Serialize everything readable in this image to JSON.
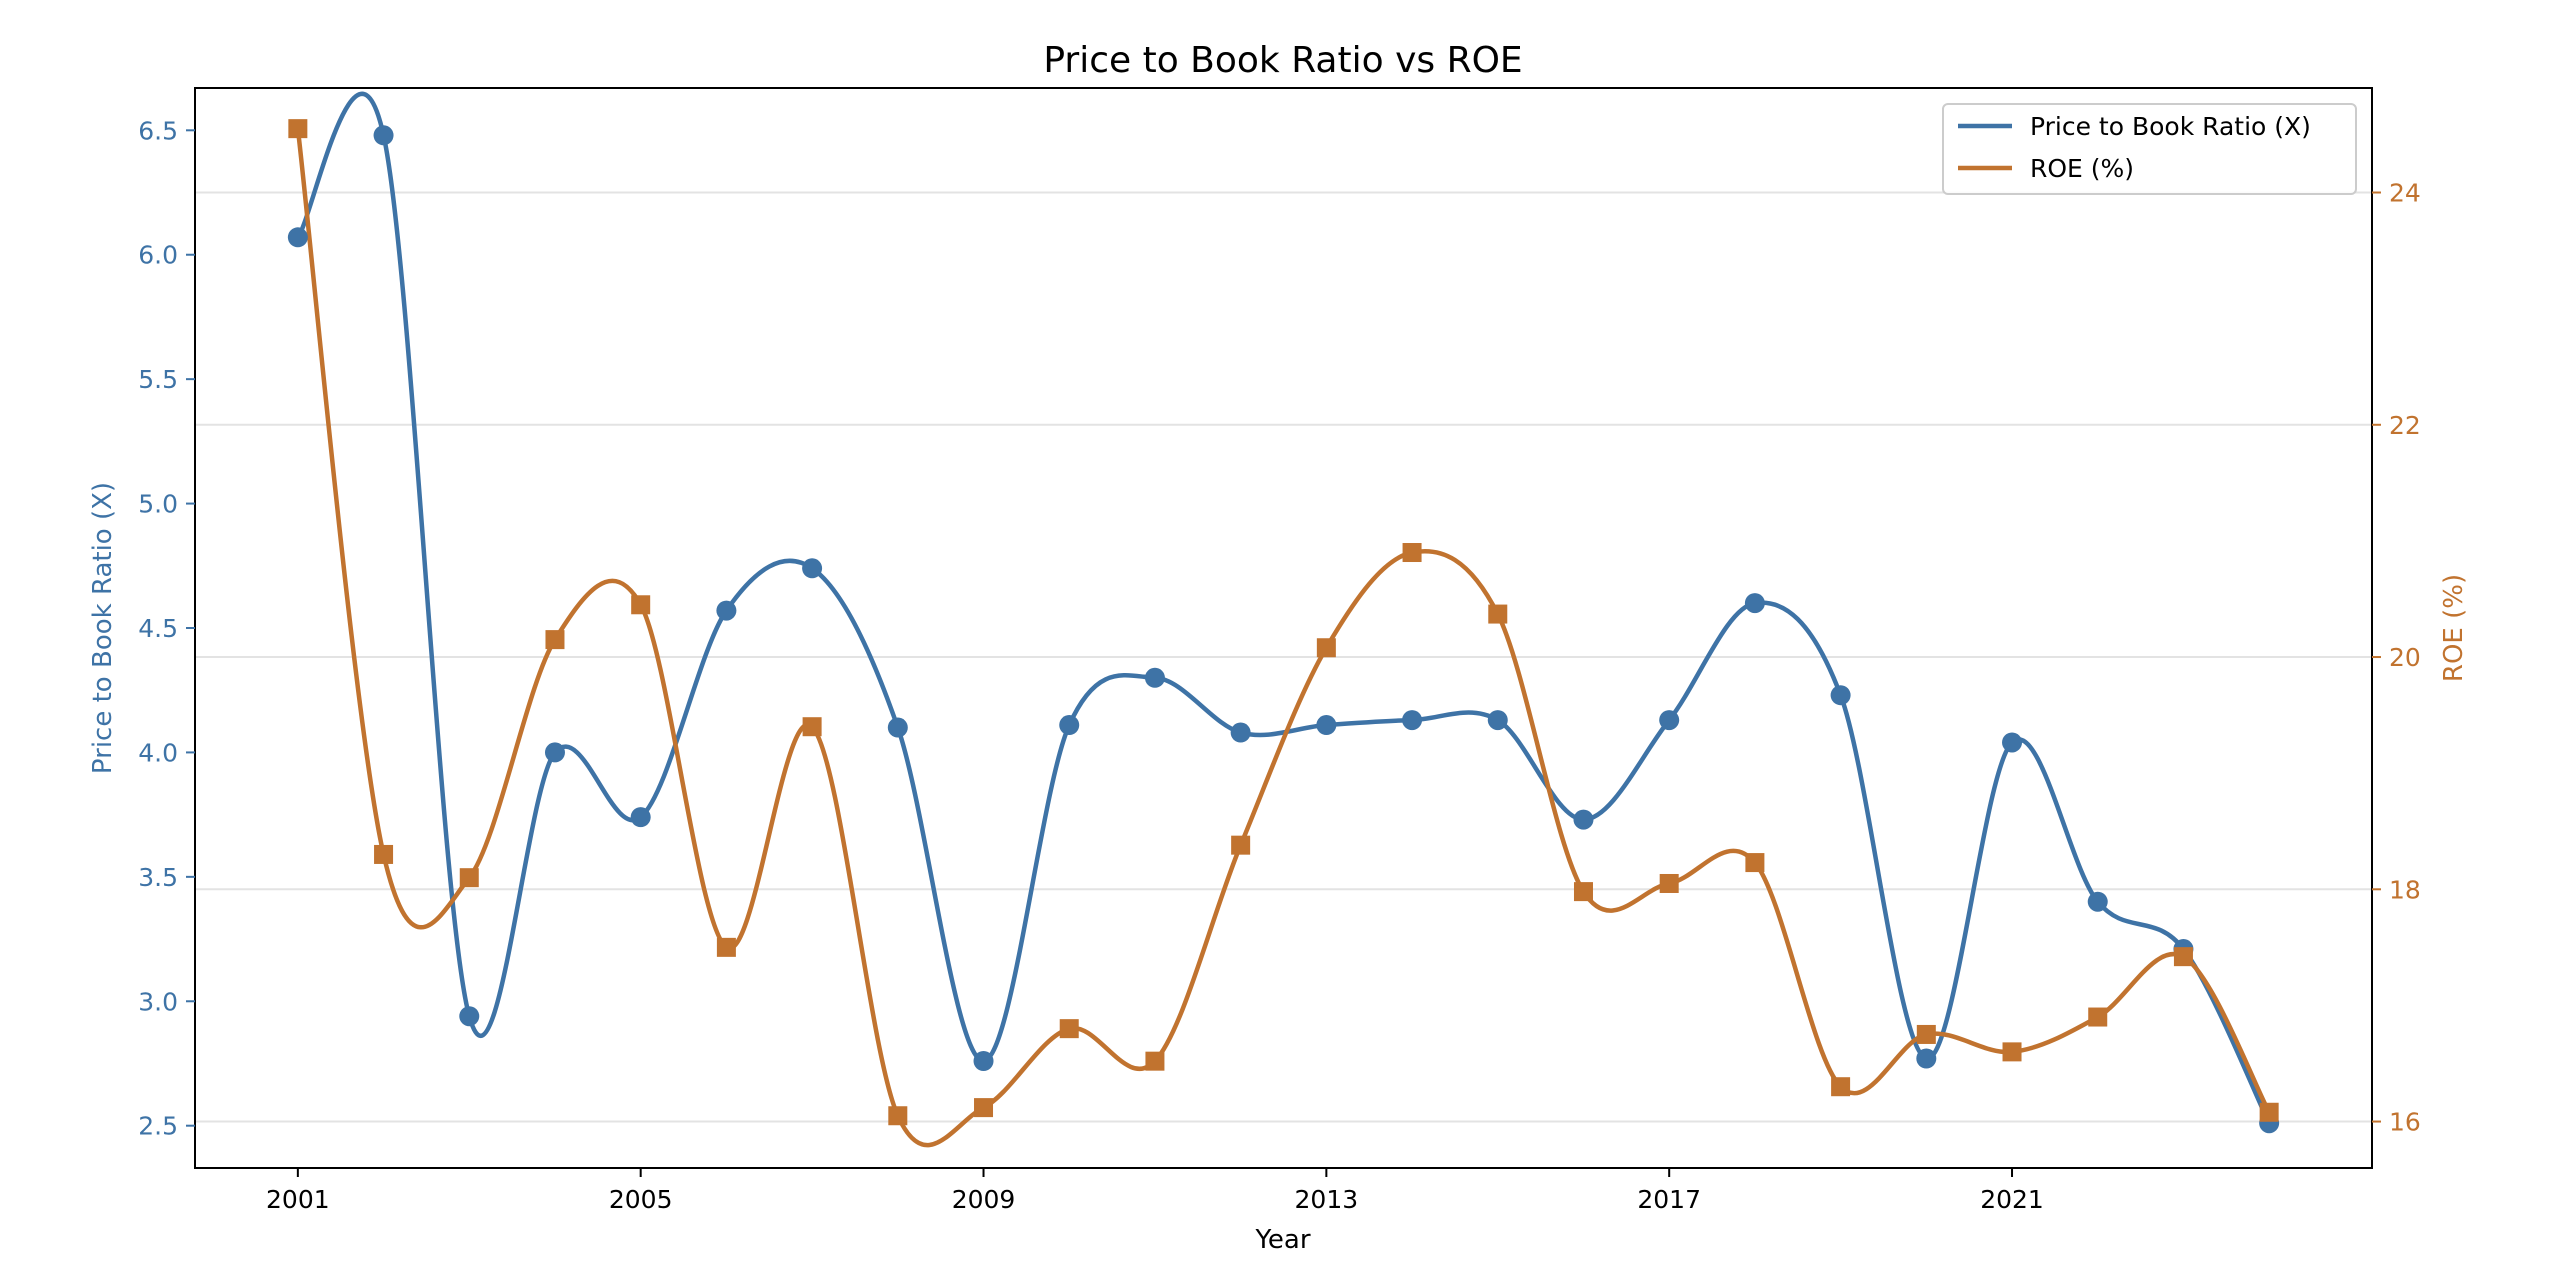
{
  "chart_data": {
    "type": "line",
    "title": "Price to Book Ratio vs ROE",
    "xlabel": "Year",
    "ylabel_left": "Price to Book Ratio (X)",
    "ylabel_right": "ROE (%)",
    "x": [
      2001,
      2002,
      2003,
      2004,
      2005,
      2006,
      2007,
      2008,
      2009,
      2010,
      2011,
      2012,
      2013,
      2014,
      2015,
      2016,
      2017,
      2018,
      2019,
      2020,
      2021,
      2022,
      2023,
      2024
    ],
    "xlim": [
      1999.8,
      2025.2
    ],
    "xticks": [
      2001,
      2005,
      2009,
      2013,
      2017,
      2021
    ],
    "ylim_left": [
      2.33,
      6.67
    ],
    "yticks_left": [
      2.5,
      3.0,
      3.5,
      4.0,
      4.5,
      5.0,
      5.5,
      6.0,
      6.5
    ],
    "ylim_right": [
      15.6,
      24.9
    ],
    "yticks_right": [
      16,
      18,
      20,
      22,
      24
    ],
    "grid": "horizontal lines at right-axis ticks",
    "legend_position": "top-right",
    "series": [
      {
        "name": "Price to Book Ratio (X)",
        "axis": "left",
        "marker": "circle",
        "color": "#3e73a6",
        "values": [
          6.07,
          6.48,
          2.94,
          4.0,
          3.74,
          4.57,
          4.74,
          4.1,
          2.76,
          4.11,
          4.3,
          4.08,
          4.11,
          4.13,
          4.13,
          3.73,
          4.13,
          4.6,
          4.23,
          2.77,
          4.04,
          3.4,
          3.21,
          2.51
        ]
      },
      {
        "name": "ROE (%)",
        "axis": "right",
        "marker": "square",
        "color": "#c1732f",
        "values": [
          24.55,
          18.3,
          18.1,
          20.15,
          20.45,
          17.5,
          19.4,
          16.05,
          16.12,
          16.8,
          16.52,
          18.38,
          20.08,
          20.9,
          20.37,
          17.98,
          18.05,
          18.23,
          16.3,
          16.75,
          16.6,
          16.9,
          17.42,
          16.08
        ]
      }
    ]
  }
}
